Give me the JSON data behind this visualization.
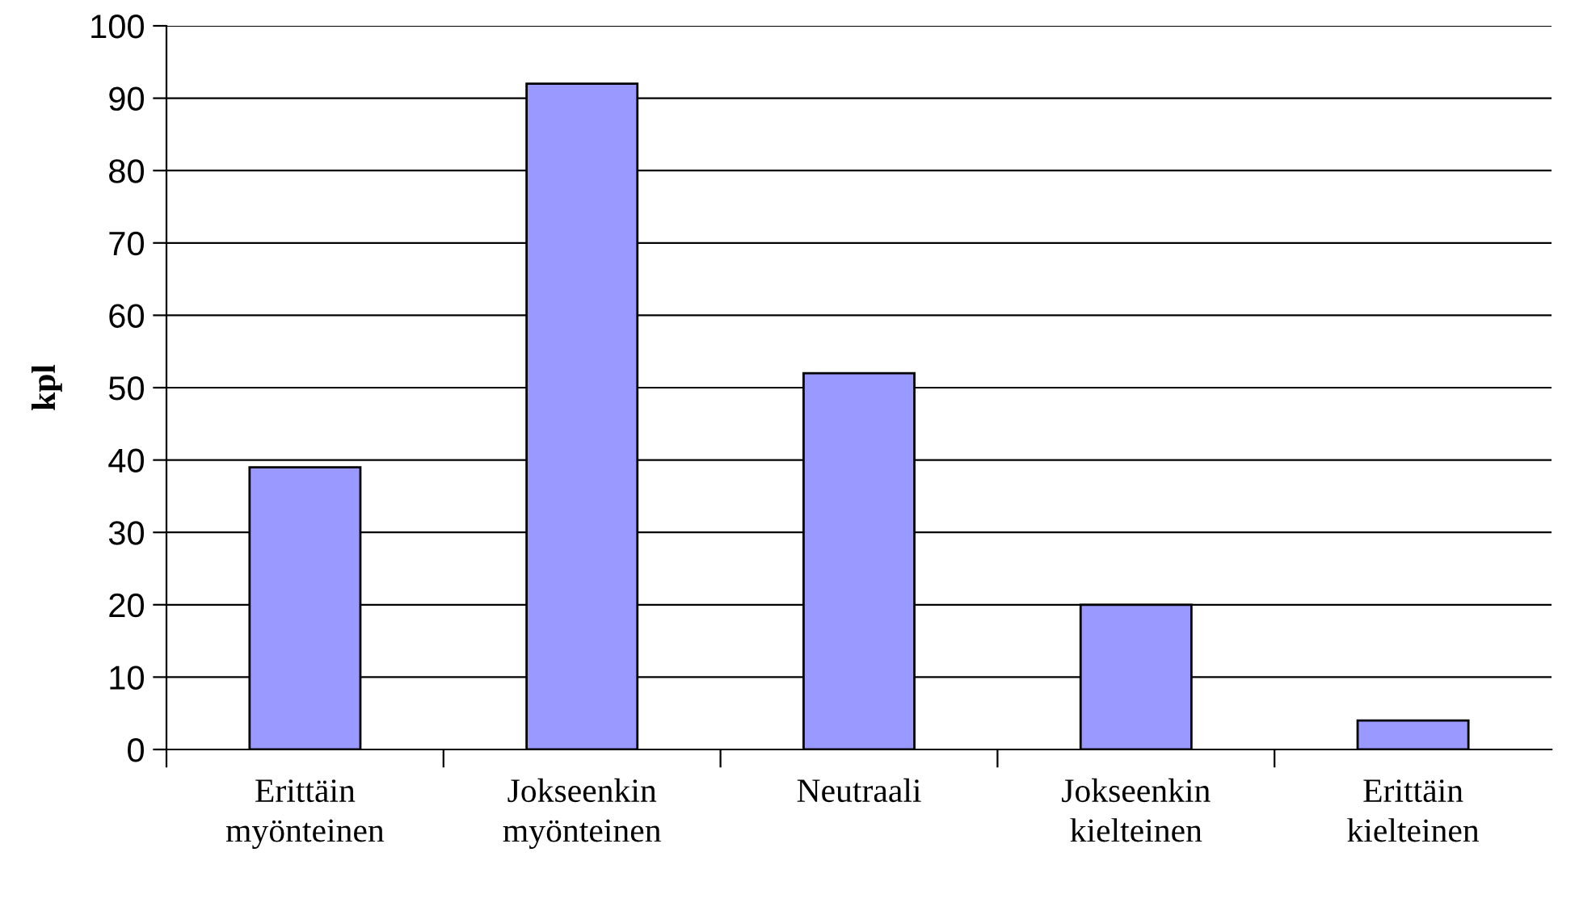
{
  "chart_data": {
    "type": "bar",
    "ylabel": "kpl",
    "categories": [
      "Erittäin\nmyönteinen",
      "Jokseenkin\nmyönteinen",
      "Neutraali",
      "Jokseenkin\nkielteinen",
      "Erittäin\nkielteinen"
    ],
    "values": [
      39,
      92,
      52,
      20,
      4
    ],
    "color": "#9999ff",
    "ylim": [
      0,
      100
    ],
    "yticks": [
      0,
      10,
      20,
      30,
      40,
      50,
      60,
      70,
      80,
      90,
      100
    ],
    "grid": "y",
    "legend": false
  }
}
